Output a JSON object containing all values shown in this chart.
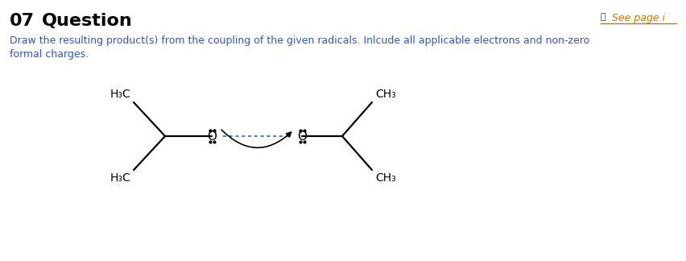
{
  "title_number": "07",
  "title_text": "Question",
  "see_page_text": "See page i",
  "description_line1": "Draw the resulting product(s) from the coupling of the given radicals. Inlcude all applicable electrons and non-zero",
  "description_line2": "formal charges.",
  "bg_color": "#ffffff",
  "title_color": "#000000",
  "desc_color": "#3355bb",
  "see_page_color": "#cc7700",
  "see_icon_color": "#333333"
}
